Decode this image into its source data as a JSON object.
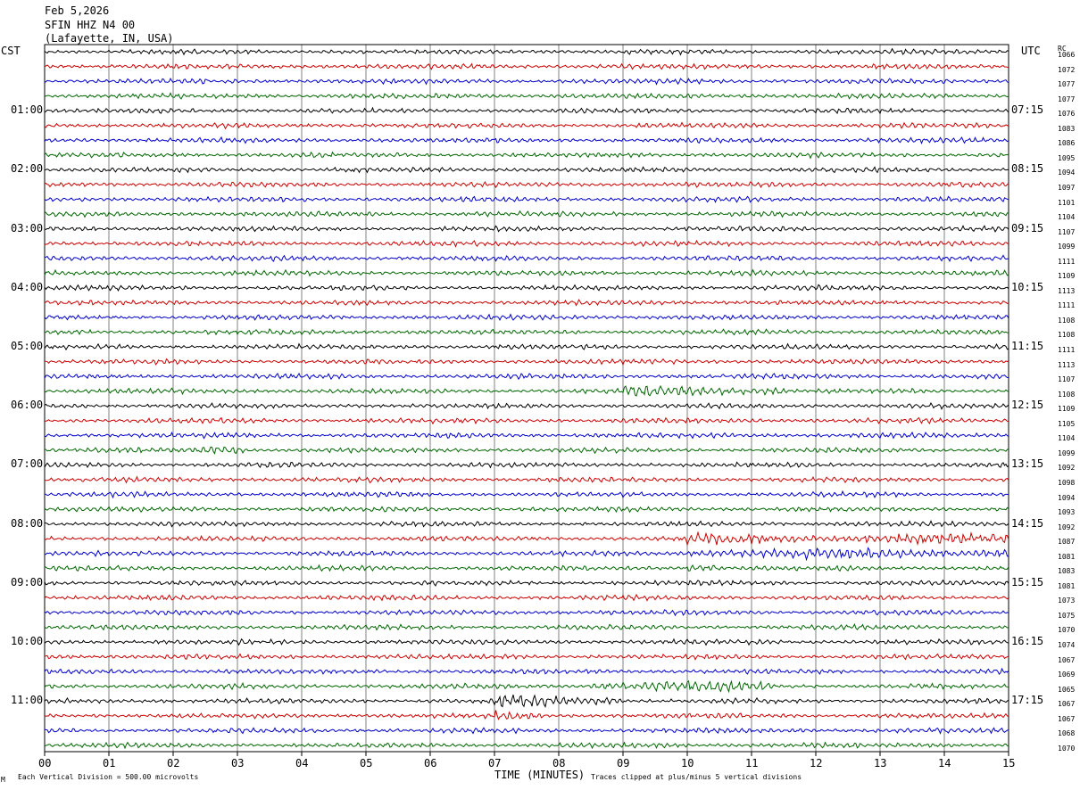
{
  "header": {
    "date": "Feb 5,2026",
    "station": "SFIN HHZ N4 00",
    "location": "(Lafayette, IN, USA)"
  },
  "left_timezone": "CST",
  "right_timezone": "UTC",
  "right_column_label": "RC",
  "footer": {
    "scale_note": "Each Vertical Division =  500.00 microvolts",
    "x_title": "TIME (MINUTES)",
    "clip_note": "Traces clipped at plus/minus 5 vertical divisions",
    "corner_mark": "M"
  },
  "colors": {
    "trace_cycle": [
      "#000000",
      "#cc0000",
      "#0000cc",
      "#006600"
    ],
    "grid": "#808080",
    "frame": "#000000"
  },
  "chart_data": {
    "type": "line",
    "title": "SFIN HHZ N4 00",
    "xlabel": "TIME (MINUTES)",
    "xlim": [
      0,
      15
    ],
    "x_ticks": [
      "00",
      "01",
      "02",
      "03",
      "04",
      "05",
      "06",
      "07",
      "08",
      "09",
      "10",
      "11",
      "12",
      "13",
      "14",
      "15"
    ],
    "rows_per_hour": 4,
    "row_minutes": 15,
    "left_hour_labels": [
      "01:00",
      "02:00",
      "03:00",
      "04:00",
      "05:00",
      "06:00",
      "07:00",
      "08:00",
      "09:00",
      "10:00",
      "11:00"
    ],
    "right_hour_labels": [
      "07:15",
      "08:15",
      "09:15",
      "10:15",
      "11:15",
      "12:15",
      "13:15",
      "14:15",
      "15:15",
      "16:15",
      "17:15"
    ],
    "trace_rows": [
      {
        "rc": "1066",
        "event": null
      },
      {
        "rc": "1072",
        "event": null
      },
      {
        "rc": "1077",
        "event": null
      },
      {
        "rc": "1077",
        "event": null
      },
      {
        "rc": "1076",
        "event": null
      },
      {
        "rc": "1083",
        "event": null
      },
      {
        "rc": "1086",
        "event": null
      },
      {
        "rc": "1095",
        "event": null
      },
      {
        "rc": "1094",
        "event": null
      },
      {
        "rc": "1097",
        "event": null
      },
      {
        "rc": "1101",
        "event": null
      },
      {
        "rc": "1104",
        "event": null
      },
      {
        "rc": "1107",
        "event": null
      },
      {
        "rc": "1099",
        "event": null
      },
      {
        "rc": "1111",
        "event": null
      },
      {
        "rc": "1109",
        "event": null
      },
      {
        "rc": "1113",
        "event": null
      },
      {
        "rc": "1111",
        "event": null
      },
      {
        "rc": "1108",
        "event": null
      },
      {
        "rc": "1108",
        "event": null
      },
      {
        "rc": "1111",
        "event": null
      },
      {
        "rc": "1113",
        "event": null
      },
      {
        "rc": "1107",
        "event": null
      },
      {
        "rc": "1108",
        "event": [
          9.0,
          11.5
        ]
      },
      {
        "rc": "1109",
        "event": null
      },
      {
        "rc": "1105",
        "event": null
      },
      {
        "rc": "1104",
        "event": null
      },
      {
        "rc": "1099",
        "event": [
          2.3,
          3.2
        ]
      },
      {
        "rc": "1092",
        "event": null
      },
      {
        "rc": "1098",
        "event": null
      },
      {
        "rc": "1094",
        "event": null
      },
      {
        "rc": "1093",
        "event": null
      },
      {
        "rc": "1092",
        "event": null
      },
      {
        "rc": "1087",
        "event": [
          10.0,
          15.0
        ]
      },
      {
        "rc": "1081",
        "event": [
          10.0,
          15.0
        ]
      },
      {
        "rc": "1083",
        "event": [
          10.0,
          10.5
        ]
      },
      {
        "rc": "1081",
        "event": null
      },
      {
        "rc": "1073",
        "event": null
      },
      {
        "rc": "1075",
        "event": null
      },
      {
        "rc": "1070",
        "event": null
      },
      {
        "rc": "1074",
        "event": null
      },
      {
        "rc": "1067",
        "event": null
      },
      {
        "rc": "1069",
        "event": null
      },
      {
        "rc": "1065",
        "event": [
          8.5,
          11.3
        ]
      },
      {
        "rc": "1067",
        "event": [
          7.0,
          9.0
        ]
      },
      {
        "rc": "1067",
        "event": [
          7.0,
          7.8
        ]
      },
      {
        "rc": "1068",
        "event": null
      },
      {
        "rc": "1070",
        "event": null
      }
    ]
  }
}
